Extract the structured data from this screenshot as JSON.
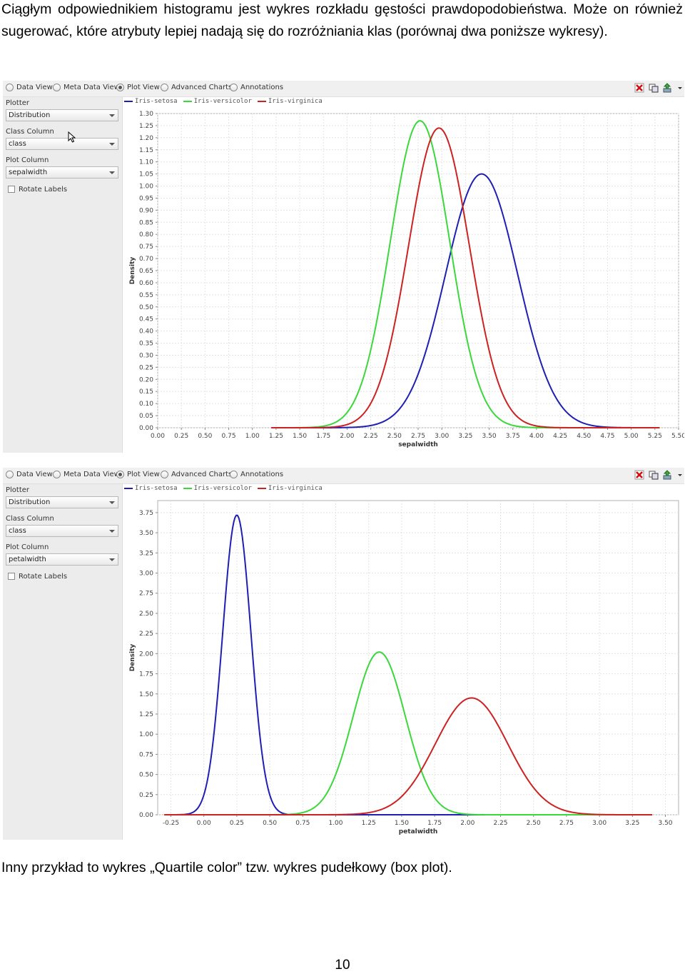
{
  "text": {
    "paragraph_top": "Ciągłym odpowiednikiem histogramu jest wykres rozkładu gęstości prawdopodobieństwa. Może on również sugerować, które atrybuty lepiej nadają się do rozróżniania klas (porównaj dwa poniższe wykresy).",
    "paragraph_bottom": "Inny przykład to wykres „Quartile color” tzw. wykres pudełkowy (box plot).",
    "page_number": "10"
  },
  "tabs": [
    {
      "label": "Data View",
      "selected": false
    },
    {
      "label": "Meta Data View",
      "selected": false
    },
    {
      "label": "Plot View",
      "selected": true
    },
    {
      "label": "Advanced Charts",
      "selected": false
    },
    {
      "label": "Annotations",
      "selected": false
    }
  ],
  "windows": [
    {
      "sidebar": {
        "plotter_label": "Plotter",
        "plotter_value": "Distribution",
        "class_column_label": "Class Column",
        "class_column_value": "class",
        "plot_column_label": "Plot Column",
        "plot_column_value": "sepalwidth",
        "rotate_labels": "Rotate Labels"
      }
    },
    {
      "sidebar": {
        "plotter_label": "Plotter",
        "plotter_value": "Distribution",
        "class_column_label": "Class Column",
        "class_column_value": "class",
        "plot_column_label": "Plot Column",
        "plot_column_value": "petalwidth",
        "rotate_labels": "Rotate Labels"
      }
    }
  ],
  "legend": [
    {
      "name": "Iris-setosa",
      "color": "#1f1fb4"
    },
    {
      "name": "Iris-versicolor",
      "color": "#3ad83a"
    },
    {
      "name": "Iris-virginica",
      "color": "#cc2222"
    }
  ],
  "chart_data": [
    {
      "type": "line",
      "xlabel": "sepalwidth",
      "ylabel": "Density",
      "xlim": [
        0.0,
        5.5
      ],
      "ylim": [
        0.0,
        1.3
      ],
      "x_ticks": [
        "0.00",
        "0.25",
        "0.50",
        "0.75",
        "1.00",
        "1.25",
        "1.50",
        "1.75",
        "2.00",
        "2.25",
        "2.50",
        "2.75",
        "3.00",
        "3.25",
        "3.50",
        "3.75",
        "4.00",
        "4.25",
        "4.50",
        "4.75",
        "5.00",
        "5.25",
        "5.50"
      ],
      "y_ticks": [
        "0.00",
        "0.05",
        "0.10",
        "0.15",
        "0.20",
        "0.25",
        "0.30",
        "0.35",
        "0.40",
        "0.45",
        "0.50",
        "0.55",
        "0.60",
        "0.65",
        "0.70",
        "0.75",
        "0.80",
        "0.85",
        "0.90",
        "0.95",
        "1.00",
        "1.05",
        "1.10",
        "1.15",
        "1.20",
        "1.25",
        "1.30"
      ],
      "x_range": [
        1.2,
        5.3
      ],
      "series": [
        {
          "name": "Iris-setosa",
          "peak_x": 3.42,
          "peak_y": 1.05,
          "color": "#1f1fb4"
        },
        {
          "name": "Iris-versicolor",
          "peak_x": 2.77,
          "peak_y": 1.27,
          "color": "#3ad83a"
        },
        {
          "name": "Iris-virginica",
          "peak_x": 2.97,
          "peak_y": 1.24,
          "color": "#cc2222"
        }
      ],
      "grid": true
    },
    {
      "type": "line",
      "xlabel": "petalwidth",
      "ylabel": "Density",
      "xlim": [
        -0.35,
        3.6
      ],
      "ylim": [
        0.0,
        3.9
      ],
      "x_ticks": [
        "-0.25",
        "0.00",
        "0.25",
        "0.50",
        "0.75",
        "1.00",
        "1.25",
        "1.50",
        "1.75",
        "2.00",
        "2.25",
        "2.50",
        "2.75",
        "3.00",
        "3.25",
        "3.50"
      ],
      "y_ticks": [
        "0.00",
        "0.25",
        "0.50",
        "0.75",
        "1.00",
        "1.25",
        "1.50",
        "1.75",
        "2.00",
        "2.25",
        "2.50",
        "2.75",
        "3.00",
        "3.25",
        "3.50",
        "3.75"
      ],
      "x_range": [
        -0.3,
        3.4
      ],
      "series": [
        {
          "name": "Iris-setosa",
          "peak_x": 0.25,
          "peak_y": 3.72,
          "color": "#1f1fb4"
        },
        {
          "name": "Iris-versicolor",
          "peak_x": 1.33,
          "peak_y": 2.02,
          "color": "#3ad83a"
        },
        {
          "name": "Iris-virginica",
          "peak_x": 2.03,
          "peak_y": 1.45,
          "color": "#cc2222"
        }
      ],
      "grid": true
    }
  ]
}
